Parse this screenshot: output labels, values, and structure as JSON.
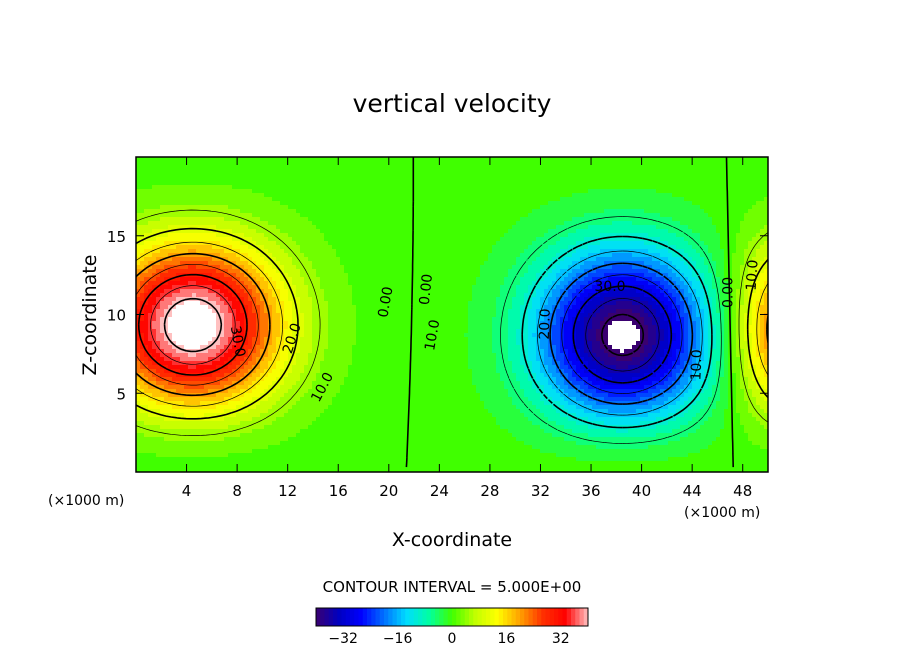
{
  "chart_data": {
    "type": "heatmap",
    "title": "vertical velocity",
    "xlabel": "X-coordinate",
    "ylabel": "Z-coordinate",
    "x_unit": "(×1000 m)",
    "z_unit": "(×1000 m)",
    "xlim": [
      0,
      50
    ],
    "ylim": [
      0,
      20
    ],
    "x_ticks": [
      "4",
      "8",
      "12",
      "16",
      "20",
      "24",
      "28",
      "32",
      "36",
      "40",
      "44",
      "48"
    ],
    "y_ticks": [
      "5",
      "10",
      "15"
    ],
    "contour_interval_text": "CONTOUR INTERVAL = 5.000E+00",
    "contour_interval": 5,
    "contour_labels": [
      "0.00",
      "10.0",
      "20.0",
      "30.0",
      "0.00",
      "10.0",
      "20.0",
      "30.0",
      "10.0",
      "0.00",
      "10.0"
    ],
    "colorbar": {
      "range": [
        -40,
        40
      ],
      "ticks": [
        "-32",
        "-16",
        "0",
        "16",
        "32"
      ],
      "colors": [
        "#3a0070",
        "#0000c0",
        "#0000ff",
        "#0070ff",
        "#00ddff",
        "#00ffa0",
        "#40ff00",
        "#c0ff00",
        "#ffff00",
        "#ffa000",
        "#ff3000",
        "#ff0000",
        "#ffc0c0"
      ]
    },
    "features": [
      {
        "kind": "updraft",
        "x": 4.5,
        "z": 9.0,
        "max": 40,
        "sign": "positive"
      },
      {
        "kind": "downdraft",
        "x": 38.5,
        "z": 8.0,
        "min": -40,
        "sign": "negative"
      },
      {
        "kind": "updraft",
        "x": 50,
        "z": 8.5,
        "max": 25,
        "sign": "positive"
      }
    ]
  }
}
